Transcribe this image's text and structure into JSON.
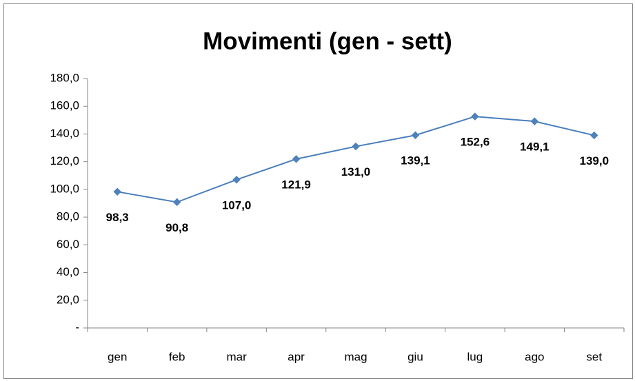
{
  "chart_data": {
    "type": "line",
    "title": "Movimenti (gen - sett)",
    "categories": [
      "gen",
      "feb",
      "mar",
      "apr",
      "mag",
      "giu",
      "lug",
      "ago",
      "set"
    ],
    "values": [
      98.3,
      90.8,
      107.0,
      121.9,
      131.0,
      139.1,
      152.6,
      149.1,
      139.0
    ],
    "value_labels": [
      "98,3",
      "90,8",
      "107,0",
      "121,9",
      "131,0",
      "139,1",
      "152,6",
      "149,1",
      "139,0"
    ],
    "color": "#4a7ebb",
    "ylim": [
      0,
      180
    ],
    "yticks": [
      {
        "value": 0,
        "label": "-"
      },
      {
        "value": 20,
        "label": "20,0"
      },
      {
        "value": 40,
        "label": "40,0"
      },
      {
        "value": 60,
        "label": "60,0"
      },
      {
        "value": 80,
        "label": "80,0"
      },
      {
        "value": 100,
        "label": "100,0"
      },
      {
        "value": 120,
        "label": "120,0"
      },
      {
        "value": 140,
        "label": "140,0"
      },
      {
        "value": 160,
        "label": "160,0"
      },
      {
        "value": 180,
        "label": "180,0"
      }
    ],
    "grid": false
  }
}
